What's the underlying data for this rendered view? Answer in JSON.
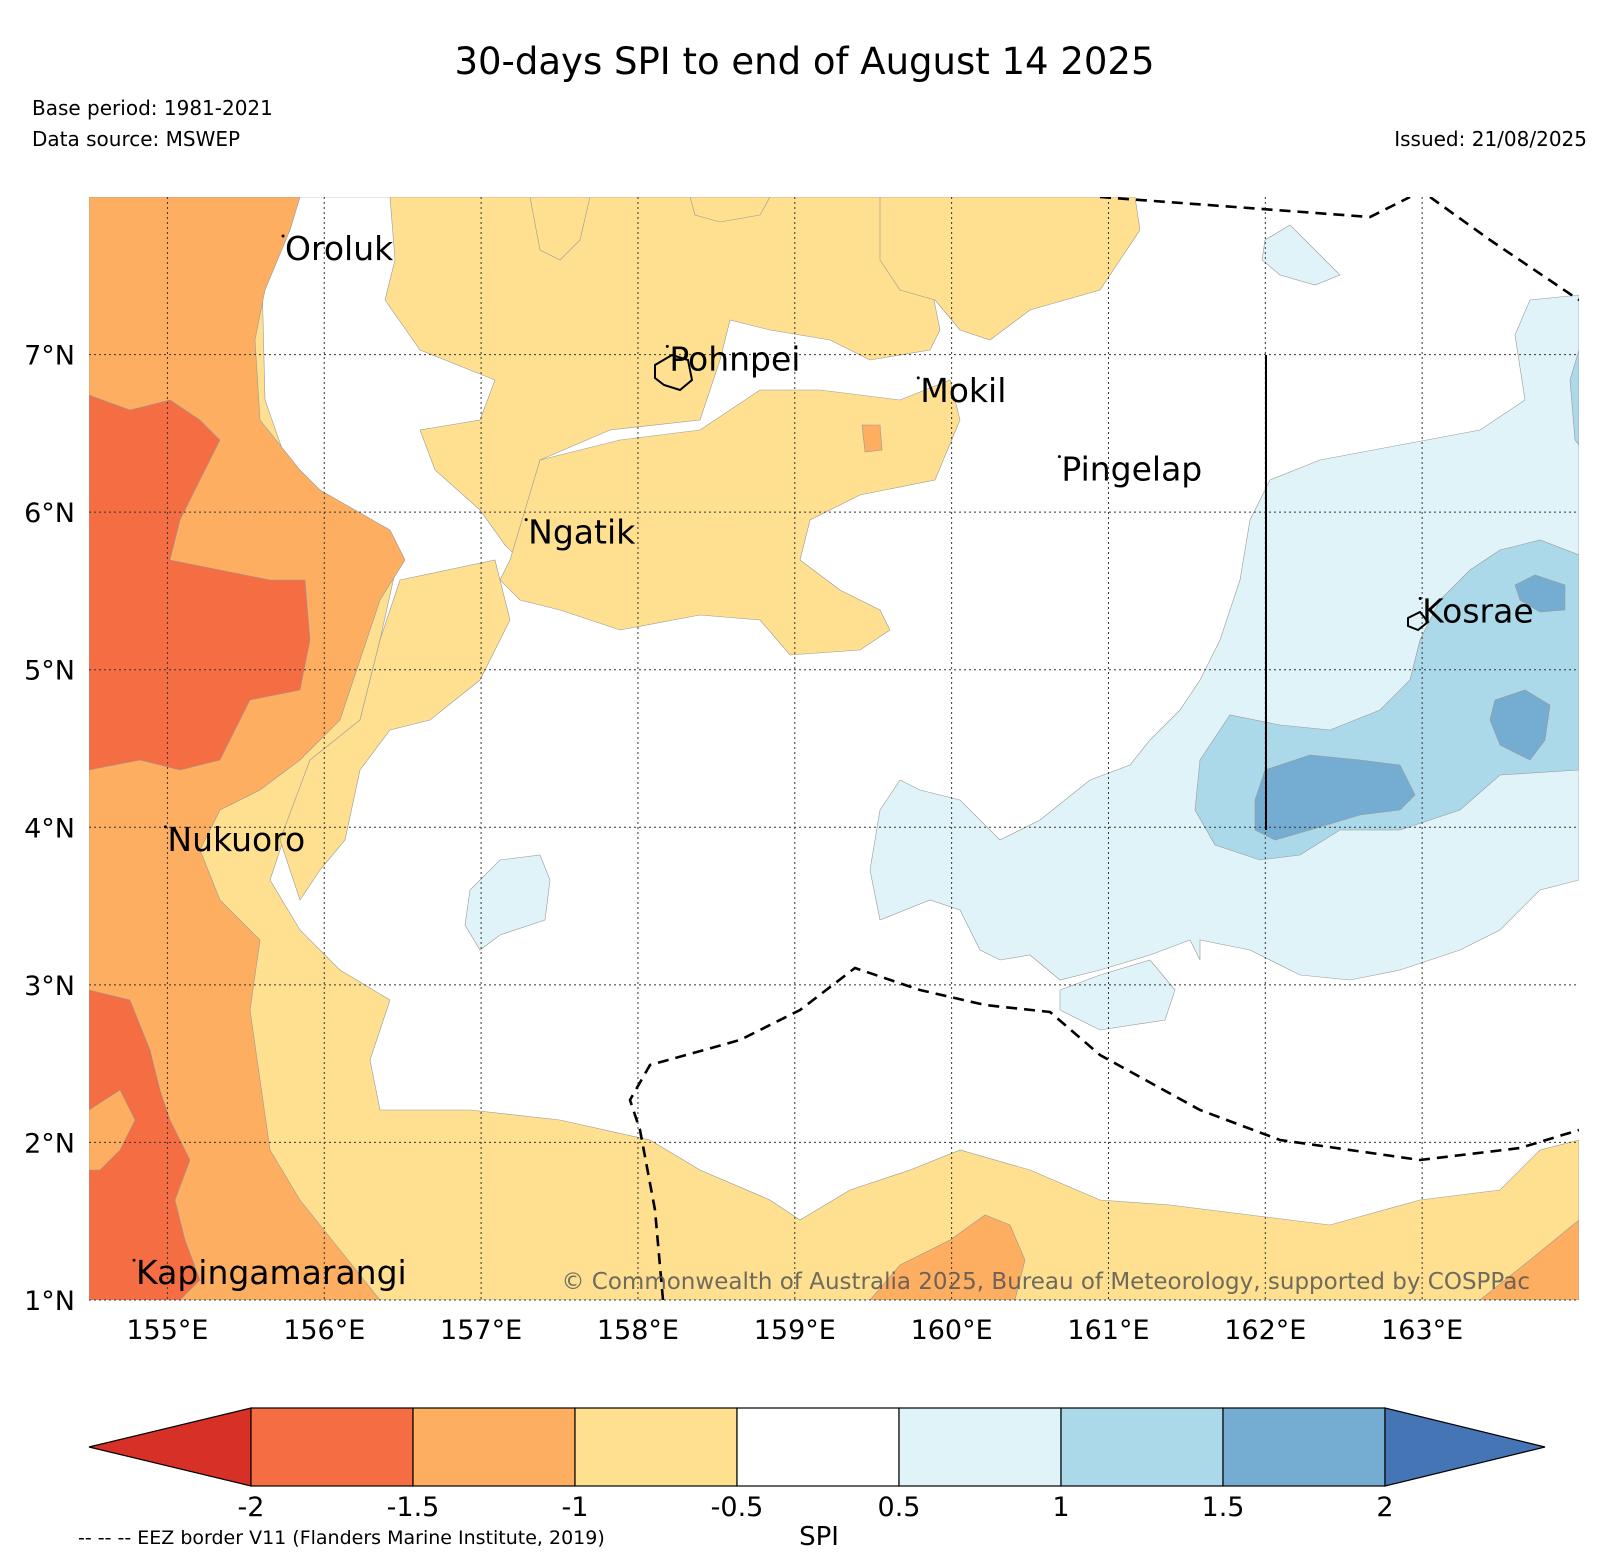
{
  "header": {
    "title": "30-days SPI to end of August 14 2025",
    "base_period": "Base period: 1981-2021",
    "data_source": "Data source: MSWEP",
    "issued": "Issued: 21/08/2025"
  },
  "map": {
    "lon_range": [
      154.5,
      164
    ],
    "lat_range": [
      1,
      8
    ],
    "lon_ticks": [
      {
        "value": 155,
        "label": "155°E"
      },
      {
        "value": 156,
        "label": "156°E"
      },
      {
        "value": 157,
        "label": "157°E"
      },
      {
        "value": 158,
        "label": "158°E"
      },
      {
        "value": 159,
        "label": "159°E"
      },
      {
        "value": 160,
        "label": "160°E"
      },
      {
        "value": 161,
        "label": "161°E"
      },
      {
        "value": 162,
        "label": "162°E"
      },
      {
        "value": 163,
        "label": "163°E"
      }
    ],
    "lat_ticks": [
      {
        "value": 7,
        "label": "7°N"
      },
      {
        "value": 6,
        "label": "6°N"
      },
      {
        "value": 5,
        "label": "5°N"
      },
      {
        "value": 4,
        "label": "4°N"
      },
      {
        "value": 3,
        "label": "3°N"
      },
      {
        "value": 2,
        "label": "2°N"
      },
      {
        "value": 1,
        "label": "1°N"
      }
    ],
    "places": [
      {
        "name": "Oroluk",
        "lon": 155.75,
        "lat": 7.6
      },
      {
        "name": "Pohnpei",
        "lon": 158.2,
        "lat": 6.9
      },
      {
        "name": "Mokil",
        "lon": 159.8,
        "lat": 6.7
      },
      {
        "name": "Pingelap",
        "lon": 160.7,
        "lat": 6.2
      },
      {
        "name": "Ngatik",
        "lon": 157.3,
        "lat": 5.8
      },
      {
        "name": "Kosrae",
        "lon": 163.0,
        "lat": 5.3
      },
      {
        "name": "Nukuoro",
        "lon": 155.0,
        "lat": 3.85
      },
      {
        "name": "Kapingamarangi",
        "lon": 154.8,
        "lat": 1.1
      }
    ],
    "copyright": "© Commonwealth of Australia 2025, Bureau of Meteorology, supported by COSPPac",
    "colors": {
      "lt_minus2": "#d73027",
      "m2_m15": "#f46d43",
      "m15_m1": "#fdae61",
      "m1_m05": "#fee090",
      "m05_05": "#ffffff",
      "p05_1": "#e0f3f8",
      "p1_15": "#abd9e9",
      "p15_2": "#74add1",
      "gt_2": "#4575b4"
    }
  },
  "colorbar": {
    "label": "SPI",
    "boundaries": [
      "-2",
      "-1.5",
      "-1",
      "-0.5",
      "0.5",
      "1",
      "1.5",
      "2"
    ],
    "colors": [
      "#d73027",
      "#f46d43",
      "#fdae61",
      "#fee090",
      "#ffffff",
      "#e0f3f8",
      "#abd9e9",
      "#74add1",
      "#4575b4"
    ]
  },
  "footnote": "-- -- -- EEZ border V11 (Flanders Marine Institute, 2019)"
}
